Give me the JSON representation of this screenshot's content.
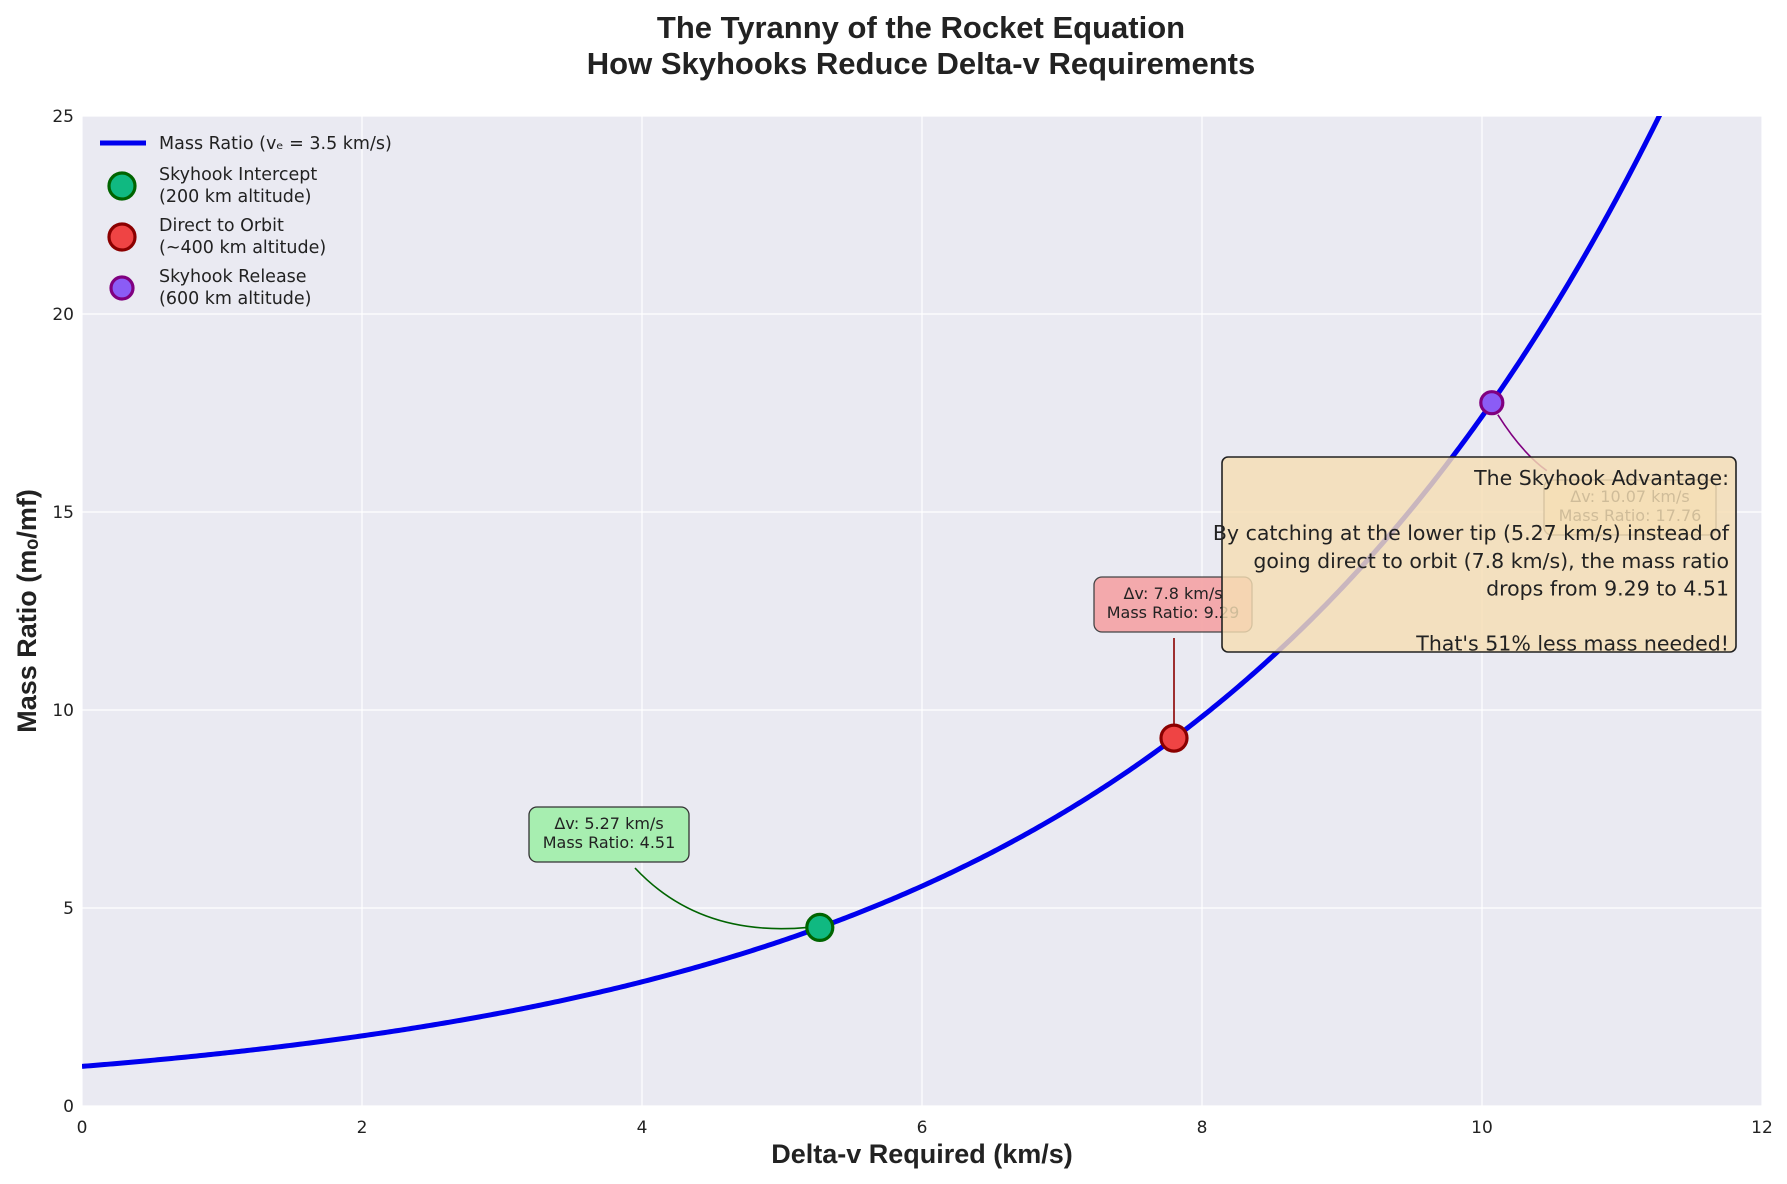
{
  "chart_data": {
    "type": "line",
    "title": [
      "The Tyranny of the Rocket Equation",
      "How Skyhooks Reduce Delta-v Requirements"
    ],
    "xlabel": "Delta-v Required (km/s)",
    "ylabel": "Mass Ratio (mₒ/mf)",
    "xlim": [
      0,
      12
    ],
    "ylim": [
      0,
      25
    ],
    "x_ticks": [
      0,
      2,
      4,
      6,
      8,
      10,
      12
    ],
    "y_ticks": [
      0,
      5,
      10,
      15,
      20,
      25
    ],
    "grid": true,
    "background": "#eaeaf2",
    "legend_position": "top-left",
    "series": [
      {
        "name": "Mass Ratio (vₑ = 3.5 km/s)",
        "color": "#0000ee",
        "exhaust_velocity_km_s": 3.5,
        "x": [
          0,
          1,
          2,
          3,
          4,
          5,
          6,
          7,
          8,
          9,
          10,
          11,
          11.26
        ],
        "y": [
          1.0,
          1.33,
          1.77,
          2.36,
          3.14,
          4.17,
          5.55,
          7.39,
          9.83,
          13.07,
          17.39,
          23.14,
          25.0
        ]
      }
    ],
    "points": [
      {
        "name": "Skyhook Intercept\n(200 km altitude)",
        "x": 5.27,
        "y": 4.51,
        "fill": "#10b981",
        "edge": "#006400",
        "size": "large",
        "label": "Δv: 5.27 km/s\nMass Ratio: 4.51",
        "label_fill": "#a7eeb0"
      },
      {
        "name": "Direct to Orbit\n(~400 km altitude)",
        "x": 7.8,
        "y": 9.29,
        "fill": "#ef4444",
        "edge": "#8b0000",
        "size": "large",
        "label": "Δv: 7.8 km/s\nMass Ratio: 9.29",
        "label_fill": "#f4a2a5"
      },
      {
        "name": "Skyhook Release\n(600 km altitude)",
        "x": 10.07,
        "y": 17.76,
        "fill": "#8b5cf6",
        "edge": "#800080",
        "size": "small",
        "label": "Δv: 10.07 km/s\nMass Ratio: 17.76",
        "label_fill": "#f2dfc1"
      }
    ],
    "annotation_box": {
      "text": "The Skyhook Advantage:\n\nBy catching at the lower tip (5.27 km/s) instead of\ngoing direct to orbit (7.8 km/s), the mass ratio\ndrops from 9.29 to 4.51\n\nThat's 51% less mass needed!",
      "fill": "#f5deb3",
      "align": "right"
    }
  }
}
